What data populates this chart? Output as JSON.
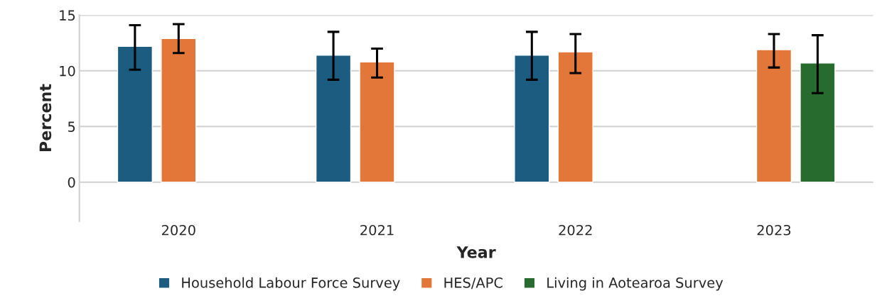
{
  "chart_data": {
    "type": "bar",
    "xlabel": "Year",
    "ylabel": "Percent",
    "categories": [
      "2020",
      "2021",
      "2022",
      "2023"
    ],
    "series": [
      {
        "name": "Household Labour Force Survey",
        "color": "#1b5c80",
        "values": [
          12.2,
          11.4,
          11.4,
          null
        ],
        "errors": [
          [
            10.1,
            14.1
          ],
          [
            9.2,
            13.5
          ],
          [
            9.2,
            13.5
          ],
          null
        ]
      },
      {
        "name": "HES/APC",
        "color": "#e3773a",
        "values": [
          12.9,
          10.8,
          11.7,
          11.9
        ],
        "errors": [
          [
            11.6,
            14.2
          ],
          [
            9.4,
            12.0
          ],
          [
            9.8,
            13.3
          ],
          [
            10.3,
            13.3
          ]
        ]
      },
      {
        "name": "Living in Aotearoa Survey",
        "color": "#276b2e",
        "values": [
          null,
          null,
          null,
          10.7
        ],
        "errors": [
          null,
          null,
          null,
          [
            8.0,
            13.2
          ]
        ]
      }
    ],
    "ylim": [
      -3.5,
      15
    ],
    "yticks": [
      0,
      5,
      10,
      15
    ],
    "grid": "y",
    "legend": "bottom"
  }
}
